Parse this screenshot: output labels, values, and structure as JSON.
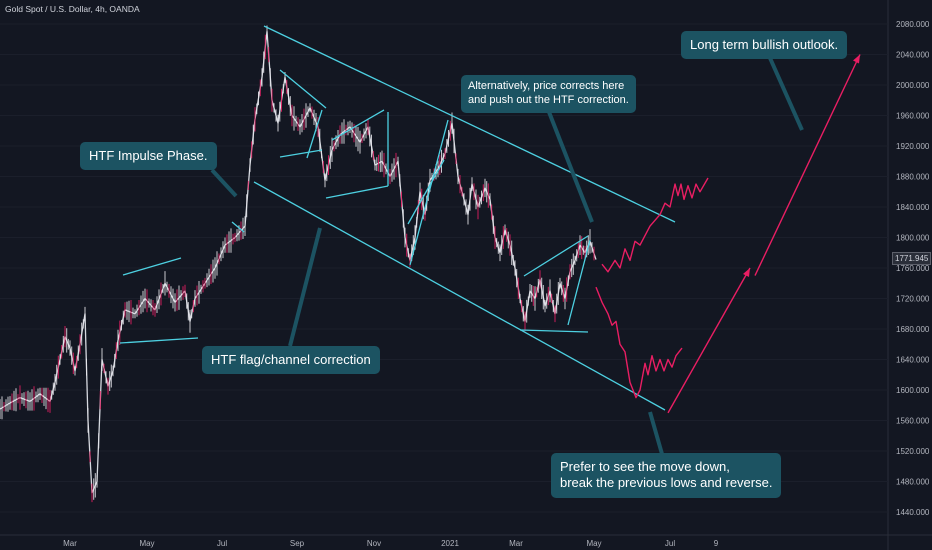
{
  "chart_title": "Gold Spot / U.S. Dollar, 4h, OANDA",
  "current_price": "1771.945",
  "colors": {
    "background": "#131722",
    "annotation_line": "#4dd0e1",
    "projection": "#e91e63",
    "note_bg": "#1c5362",
    "axis_text": "#b2b5be"
  },
  "notes": {
    "impulse": "HTF Impulse Phase.",
    "flag": "HTF flag/channel correction",
    "alt_line1": "Alternatively, price corrects here",
    "alt_line2": "and push out the HTF correction.",
    "bullish": "Long term bullish outlook.",
    "prefer_line1": "Prefer to see the move down,",
    "prefer_line2": "break the previous lows and reverse."
  },
  "chart_data": {
    "type": "line",
    "title": "Gold Spot / U.S. Dollar, 4h, OANDA",
    "y_ticks": [
      1440,
      1480,
      1520,
      1560,
      1600,
      1640,
      1680,
      1720,
      1760,
      1800,
      1840,
      1880,
      1920,
      1960,
      2000,
      2040,
      2080
    ],
    "y_tick_labels": [
      "1440.000",
      "1480.000",
      "1520.000",
      "1560.000",
      "1600.000",
      "1640.000",
      "1680.000",
      "1720.000",
      "1760.000",
      "1800.000",
      "1840.000",
      "1880.000",
      "1920.000",
      "1960.000",
      "2000.000",
      "2040.000",
      "2080.000"
    ],
    "ylim": [
      1420,
      2100
    ],
    "x_labels": [
      "Mar",
      "May",
      "Jul",
      "Sep",
      "Nov",
      "2021",
      "Mar",
      "May",
      "Jul",
      "9"
    ],
    "series": [
      {
        "values": [
          [
            0,
            1575
          ],
          [
            10,
            1583
          ],
          [
            20,
            1590
          ],
          [
            30,
            1585
          ],
          [
            40,
            1595
          ],
          [
            50,
            1585
          ],
          [
            55,
            1610
          ],
          [
            60,
            1640
          ],
          [
            65,
            1670
          ],
          [
            70,
            1655
          ],
          [
            75,
            1625
          ],
          [
            80,
            1660
          ],
          [
            85,
            1700
          ],
          [
            88,
            1560
          ],
          [
            92,
            1465
          ],
          [
            97,
            1480
          ],
          [
            102,
            1640
          ],
          [
            108,
            1605
          ],
          [
            113,
            1625
          ],
          [
            118,
            1665
          ],
          [
            125,
            1705
          ],
          [
            135,
            1700
          ],
          [
            145,
            1720
          ],
          [
            155,
            1705
          ],
          [
            165,
            1740
          ],
          [
            175,
            1715
          ],
          [
            185,
            1730
          ],
          [
            190,
            1690
          ],
          [
            195,
            1720
          ],
          [
            205,
            1740
          ],
          [
            215,
            1760
          ],
          [
            225,
            1790
          ],
          [
            235,
            1800
          ],
          [
            245,
            1815
          ],
          [
            250,
            1895
          ],
          [
            255,
            1955
          ],
          [
            262,
            2010
          ],
          [
            267,
            2070
          ],
          [
            272,
            1980
          ],
          [
            278,
            1950
          ],
          [
            285,
            2010
          ],
          [
            292,
            1960
          ],
          [
            300,
            1945
          ],
          [
            310,
            1970
          ],
          [
            318,
            1945
          ],
          [
            325,
            1875
          ],
          [
            332,
            1915
          ],
          [
            340,
            1935
          ],
          [
            350,
            1945
          ],
          [
            360,
            1925
          ],
          [
            368,
            1945
          ],
          [
            375,
            1895
          ],
          [
            382,
            1900
          ],
          [
            390,
            1880
          ],
          [
            398,
            1900
          ],
          [
            405,
            1800
          ],
          [
            410,
            1770
          ],
          [
            415,
            1800
          ],
          [
            420,
            1860
          ],
          [
            425,
            1830
          ],
          [
            430,
            1875
          ],
          [
            438,
            1890
          ],
          [
            445,
            1910
          ],
          [
            452,
            1950
          ],
          [
            458,
            1880
          ],
          [
            462,
            1860
          ],
          [
            468,
            1830
          ],
          [
            472,
            1870
          ],
          [
            478,
            1840
          ],
          [
            485,
            1865
          ],
          [
            490,
            1850
          ],
          [
            495,
            1800
          ],
          [
            500,
            1780
          ],
          [
            505,
            1810
          ],
          [
            510,
            1790
          ],
          [
            515,
            1760
          ],
          [
            520,
            1720
          ],
          [
            525,
            1690
          ],
          [
            530,
            1730
          ],
          [
            535,
            1720
          ],
          [
            540,
            1745
          ],
          [
            545,
            1710
          ],
          [
            550,
            1730
          ],
          [
            555,
            1700
          ],
          [
            560,
            1740
          ],
          [
            565,
            1720
          ],
          [
            570,
            1755
          ],
          [
            575,
            1770
          ],
          [
            580,
            1790
          ],
          [
            585,
            1780
          ],
          [
            590,
            1795
          ],
          [
            596,
            1771
          ]
        ]
      },
      {
        "name": "",
        "values": [
          [
            602,
            1765
          ],
          [
            608,
            1755
          ],
          [
            615,
            1770
          ],
          [
            620,
            1760
          ],
          [
            625,
            1785
          ],
          [
            630,
            1770
          ],
          [
            635,
            1795
          ],
          [
            640,
            1790
          ],
          [
            650,
            1815
          ],
          [
            660,
            1830
          ],
          [
            665,
            1845
          ],
          [
            670,
            1840
          ],
          [
            675,
            1870
          ],
          [
            678,
            1855
          ],
          [
            681,
            1870
          ],
          [
            684,
            1850
          ],
          [
            688,
            1868
          ],
          [
            692,
            1852
          ],
          [
            696,
            1870
          ],
          [
            700,
            1860
          ],
          [
            708,
            1878
          ]
        ]
      },
      {
        "name": "",
        "values": [
          [
            596,
            1735
          ],
          [
            602,
            1715
          ],
          [
            608,
            1700
          ],
          [
            612,
            1685
          ],
          [
            616,
            1690
          ],
          [
            620,
            1660
          ],
          [
            625,
            1650
          ],
          [
            630,
            1610
          ],
          [
            636,
            1590
          ],
          [
            640,
            1600
          ],
          [
            645,
            1635
          ],
          [
            648,
            1620
          ],
          [
            652,
            1645
          ],
          [
            656,
            1625
          ],
          [
            660,
            1640
          ],
          [
            664,
            1625
          ],
          [
            668,
            1640
          ],
          [
            672,
            1630
          ],
          [
            676,
            1645
          ],
          [
            682,
            1655
          ]
        ]
      },
      {
        "name": "",
        "values": [
          [
            668,
            1570
          ],
          [
            750,
            1760
          ]
        ]
      },
      {
        "name": "",
        "values": [
          [
            755,
            1750
          ],
          [
            860,
            2040
          ]
        ]
      }
    ]
  }
}
